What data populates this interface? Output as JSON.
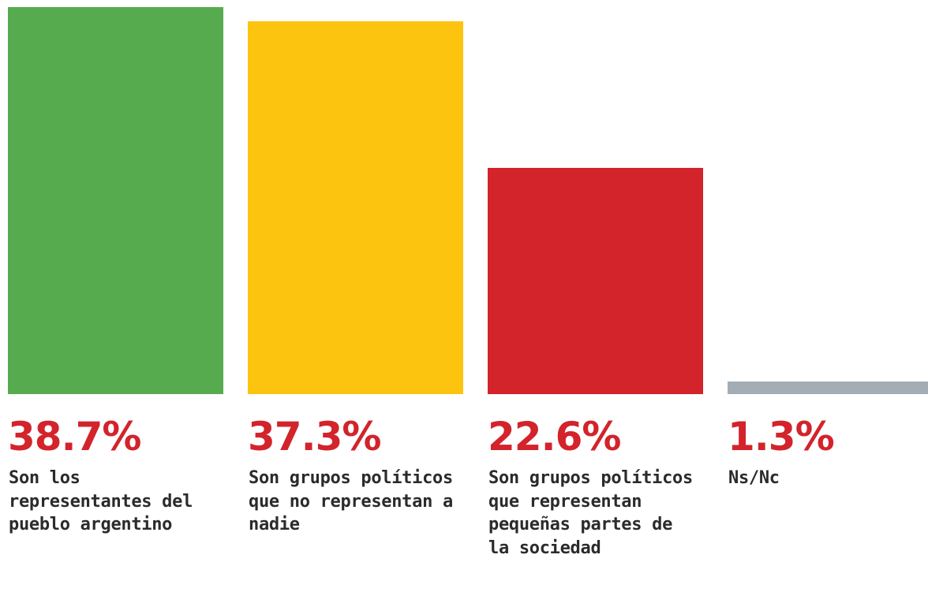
{
  "chart_data": {
    "type": "bar",
    "categories": [
      "Son los representantes del pueblo argentino",
      "Son grupos políticos que no representan a nadie",
      "Son grupos políticos que representan pequeñas partes de la sociedad",
      "Ns/Nc"
    ],
    "values": [
      38.7,
      37.3,
      22.6,
      1.3
    ],
    "value_labels": [
      "38.7%",
      "37.3%",
      "22.6%",
      "1.3%"
    ],
    "colors": [
      "#56ab4f",
      "#fdc40f",
      "#d3232b",
      "#a2adb6"
    ],
    "label_color": "#d3232b",
    "title": "",
    "xlabel": "",
    "ylabel": "",
    "ylim": [
      0,
      38.7
    ],
    "grid": false,
    "legend": "none"
  }
}
